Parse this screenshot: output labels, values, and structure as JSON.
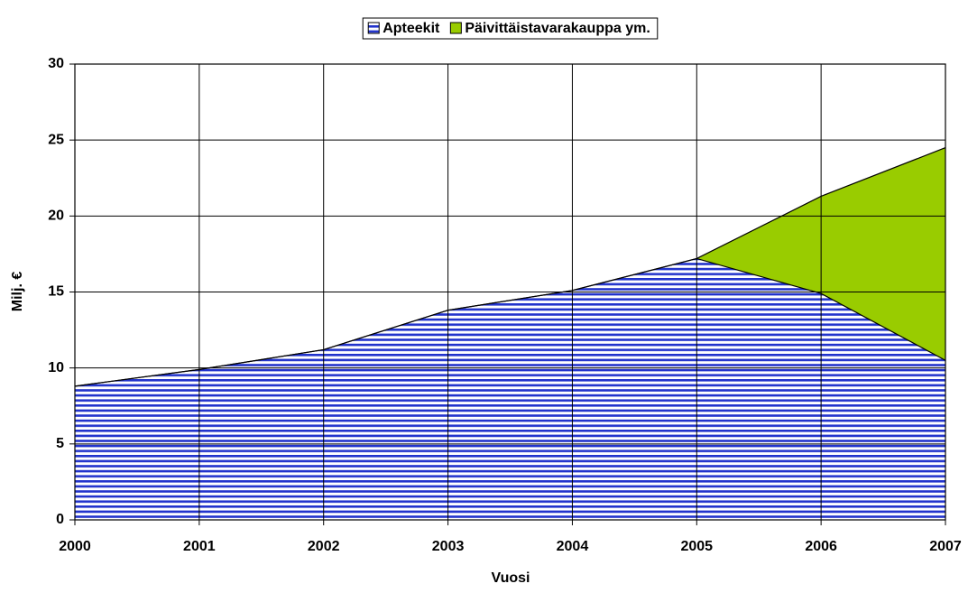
{
  "chart_data": {
    "type": "stacked_area",
    "categories": [
      "2000",
      "2001",
      "2002",
      "2003",
      "2004",
      "2005",
      "2006",
      "2007"
    ],
    "series": [
      {
        "name": "Apteekit",
        "color": "#2233cc",
        "values": [
          8.8,
          9.9,
          11.2,
          13.8,
          15.1,
          17.2,
          14.9,
          10.5
        ]
      },
      {
        "name": "Päivittäistavarakauppa ym.",
        "color": "#99cc00",
        "values": [
          0,
          0,
          0,
          0,
          0,
          0,
          6.4,
          14.0
        ]
      }
    ],
    "xlabel": "Vuosi",
    "ylabel": "Milj. €",
    "ylim": [
      0,
      30
    ],
    "yticks": [
      0,
      5,
      10,
      15,
      20,
      25,
      30
    ],
    "grid": true,
    "legend": "top"
  }
}
